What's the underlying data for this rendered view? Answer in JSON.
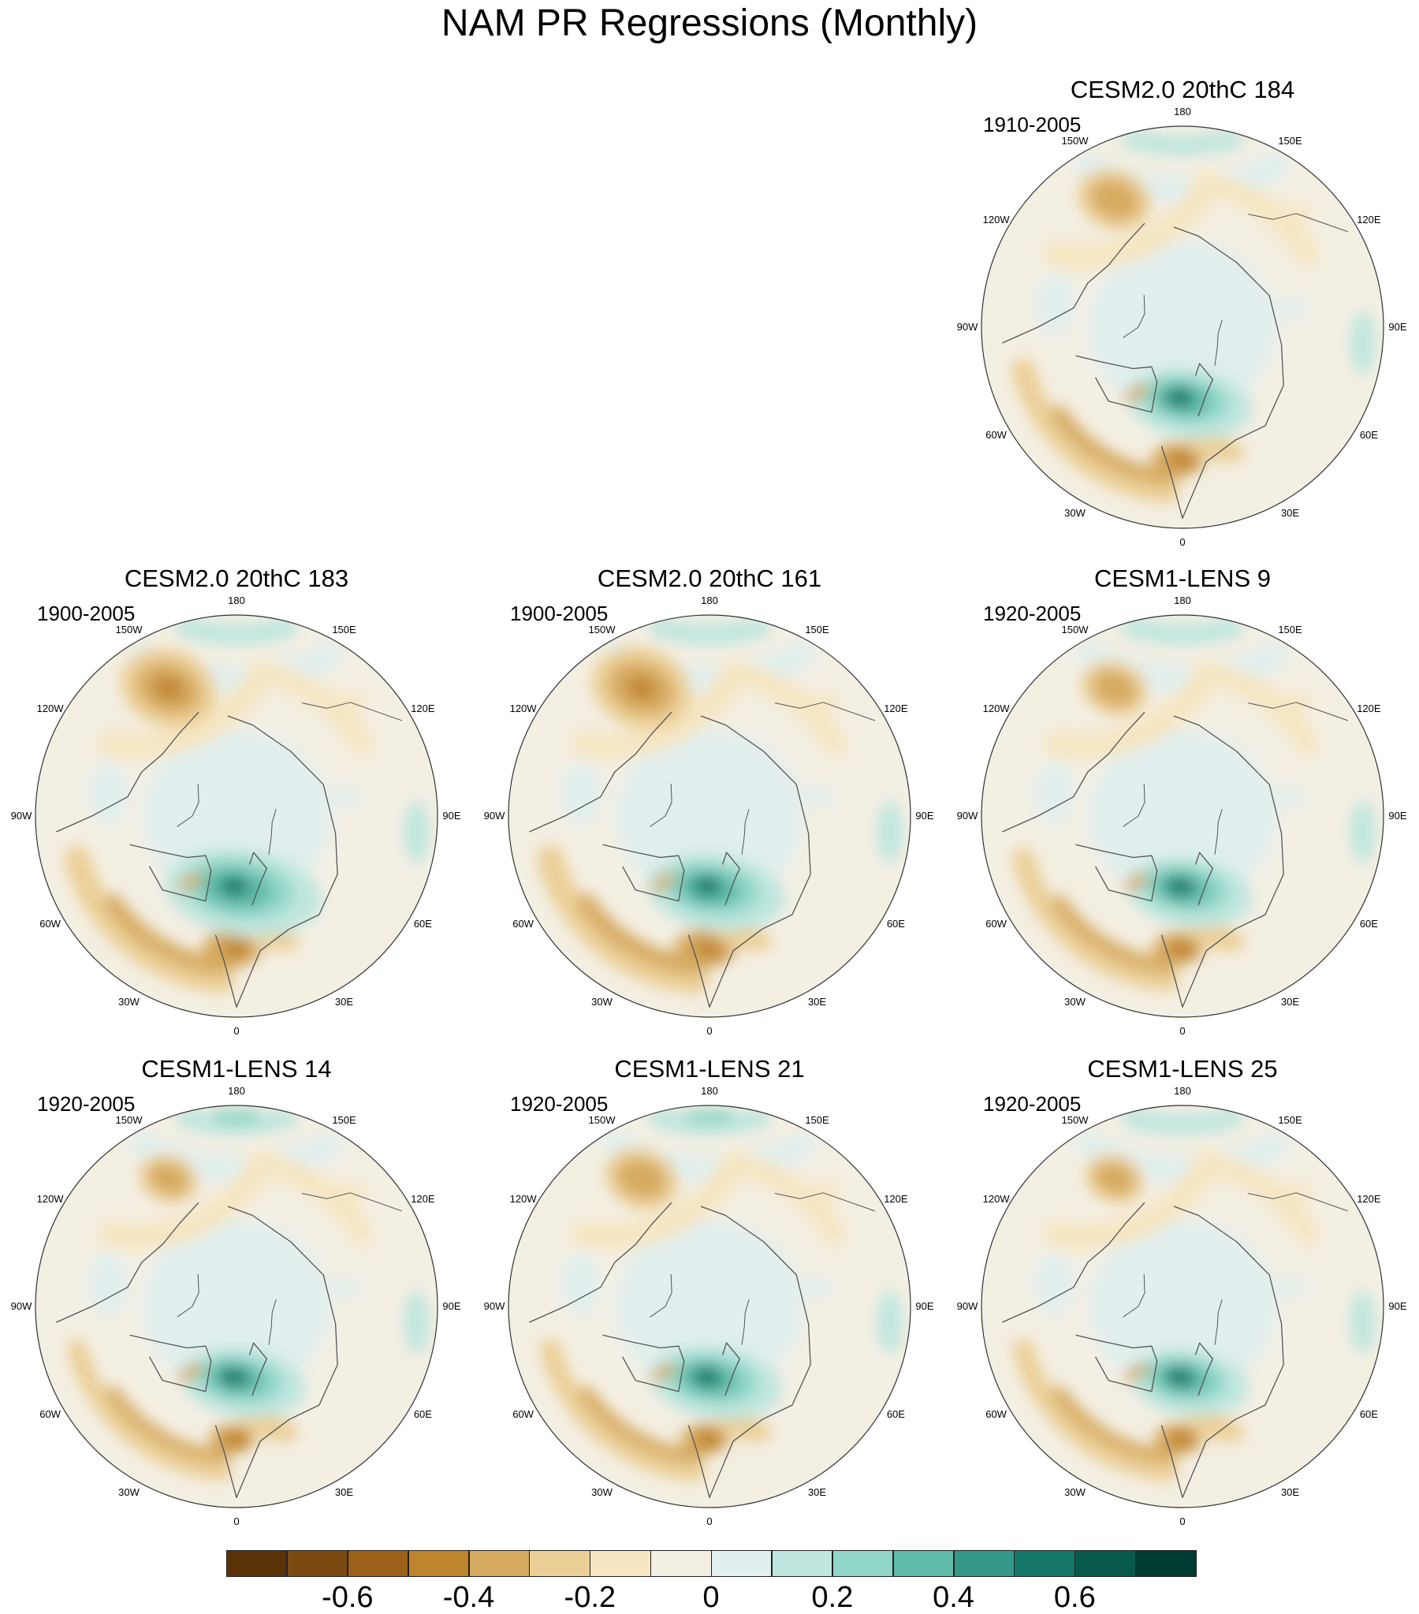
{
  "title": "NAM PR Regressions (Monthly)",
  "longitude_labels": [
    "180",
    "150E",
    "120E",
    "90E",
    "60E",
    "30E",
    "0",
    "30W",
    "60W",
    "90W",
    "120W",
    "150W"
  ],
  "panels": [
    {
      "title": "CESM2.0 20thC 184",
      "years": "1910-2005",
      "variant": 0
    },
    {
      "title": "CESM2.0 20thC 183",
      "years": "1900-2005",
      "variant": 1
    },
    {
      "title": "CESM2.0 20thC 161",
      "years": "1900-2005",
      "variant": 2
    },
    {
      "title": "CESM1-LENS 9",
      "years": "1920-2005",
      "variant": 3
    },
    {
      "title": "CESM1-LENS 14",
      "years": "1920-2005",
      "variant": 4
    },
    {
      "title": "CESM1-LENS 21",
      "years": "1920-2005",
      "variant": 5
    },
    {
      "title": "CESM1-LENS 25",
      "years": "1920-2005",
      "variant": 6
    }
  ],
  "colorbar": {
    "colors": [
      "#5a3208",
      "#7b4a10",
      "#9c6018",
      "#bf842e",
      "#d6aa60",
      "#ebcf96",
      "#f6e6c2",
      "#f4efe3",
      "#e1efee",
      "#bfe6df",
      "#91d6c8",
      "#5fbaa8",
      "#33988a",
      "#157768",
      "#075a4c",
      "#003b31"
    ],
    "tick_labels": [
      "-0.6",
      "-0.4",
      "-0.2",
      "0",
      "0.2",
      "0.4",
      "0.6"
    ],
    "tick_values": [
      -0.6,
      -0.4,
      -0.2,
      0,
      0.2,
      0.4,
      0.6
    ],
    "levels": [
      -0.7,
      -0.6,
      -0.5,
      -0.4,
      -0.3,
      -0.2,
      -0.1,
      0,
      0.1,
      0.2,
      0.3,
      0.4,
      0.5,
      0.6,
      0.7
    ]
  }
}
